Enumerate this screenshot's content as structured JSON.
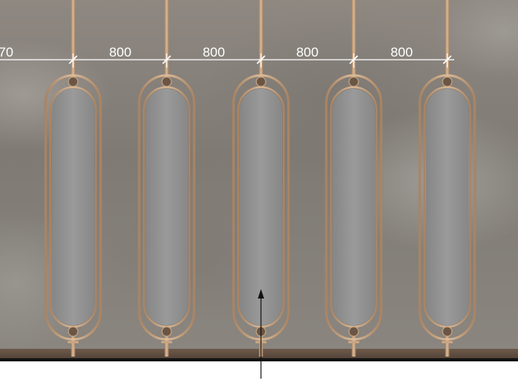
{
  "colors": {
    "brass": "#c9a582",
    "panel": "#8f8f8f",
    "dimension": "#ffffff",
    "leader": "#111111"
  },
  "dimensions": {
    "labels": [
      "70",
      "800",
      "800",
      "800",
      "800"
    ]
  },
  "panels": {
    "count": 5
  }
}
